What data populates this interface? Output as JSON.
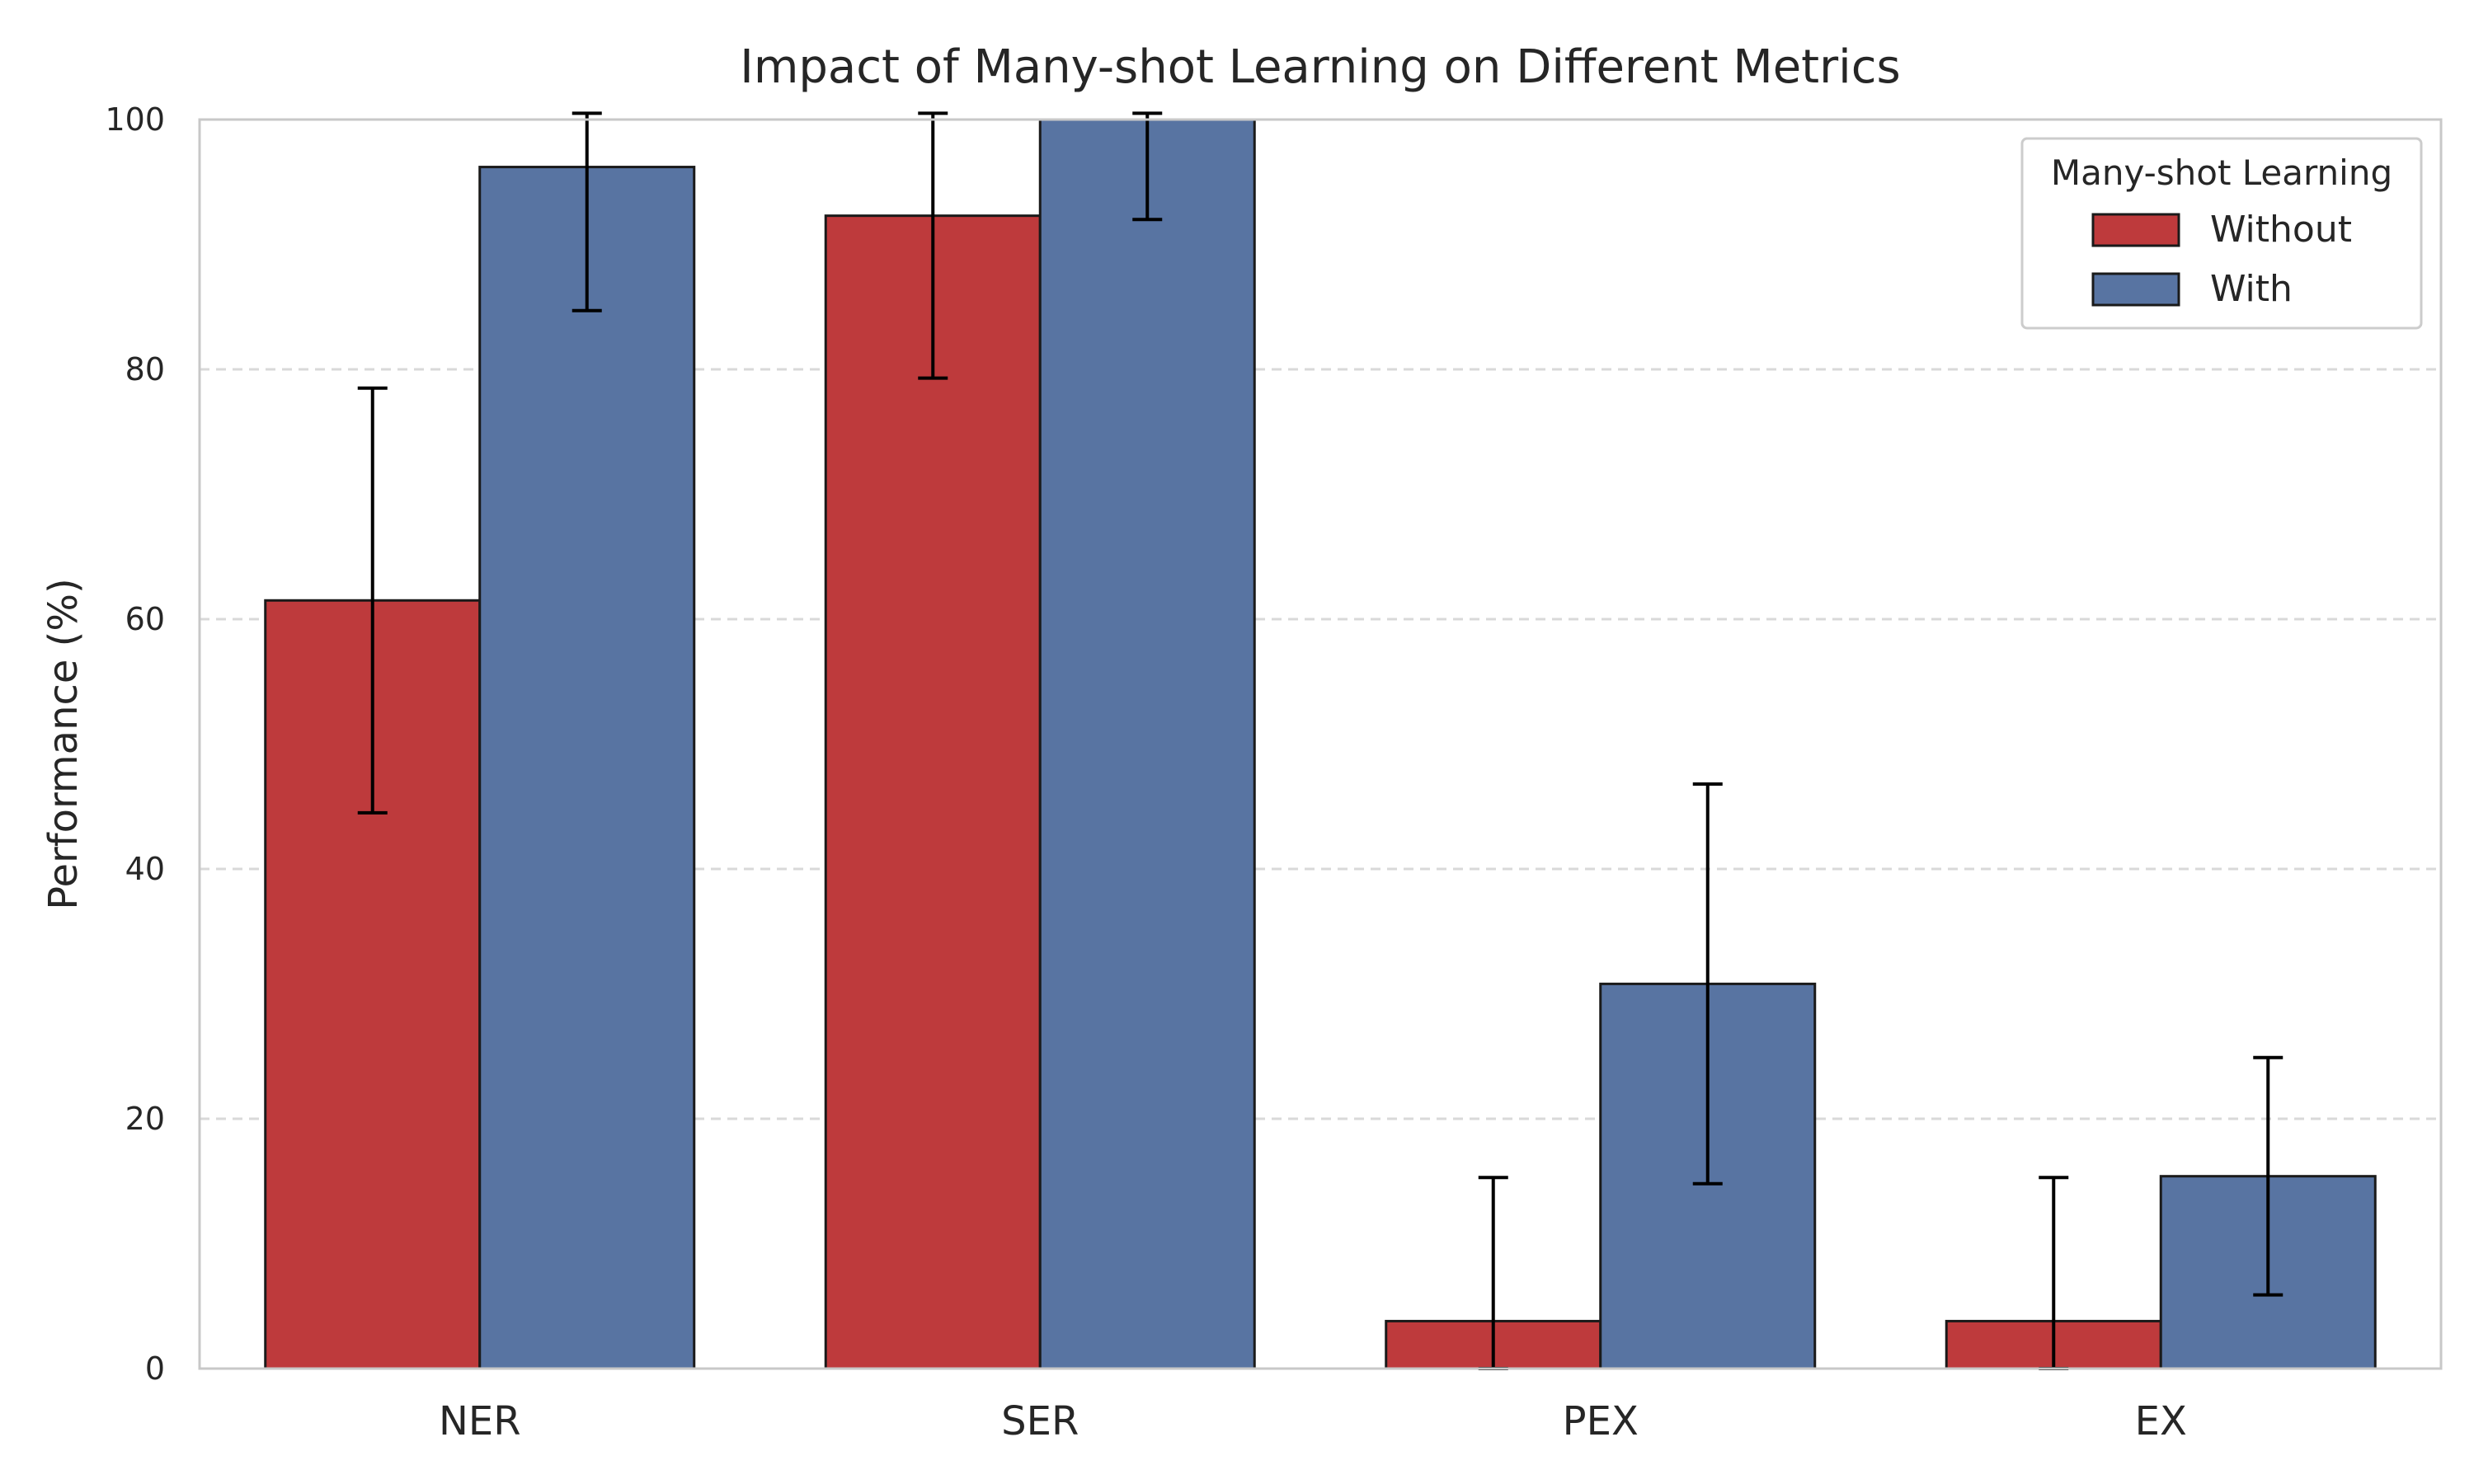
{
  "chart_data": {
    "type": "bar",
    "title": "Impact of Many-shot Learning on Different Metrics",
    "xlabel": "",
    "ylabel": "Performance (%)",
    "ylim": [
      0,
      100
    ],
    "yticks": [
      0,
      20,
      40,
      60,
      80,
      100
    ],
    "grid": "y-dashed",
    "legend_title": "Many-shot Learning",
    "legend_position": "top-right",
    "categories": [
      "NER",
      "SER",
      "PEX",
      "EX"
    ],
    "series": [
      {
        "name": "Without",
        "color": "#be3a3c",
        "values": [
          61.5,
          92.3,
          3.8,
          3.8
        ],
        "error": [
          17.0,
          13.0,
          11.5,
          11.5
        ]
      },
      {
        "name": "With",
        "color": "#5874a2",
        "values": [
          96.2,
          100.0,
          30.8,
          15.4
        ],
        "error": [
          11.5,
          8.0,
          16.0,
          9.5
        ]
      }
    ]
  }
}
